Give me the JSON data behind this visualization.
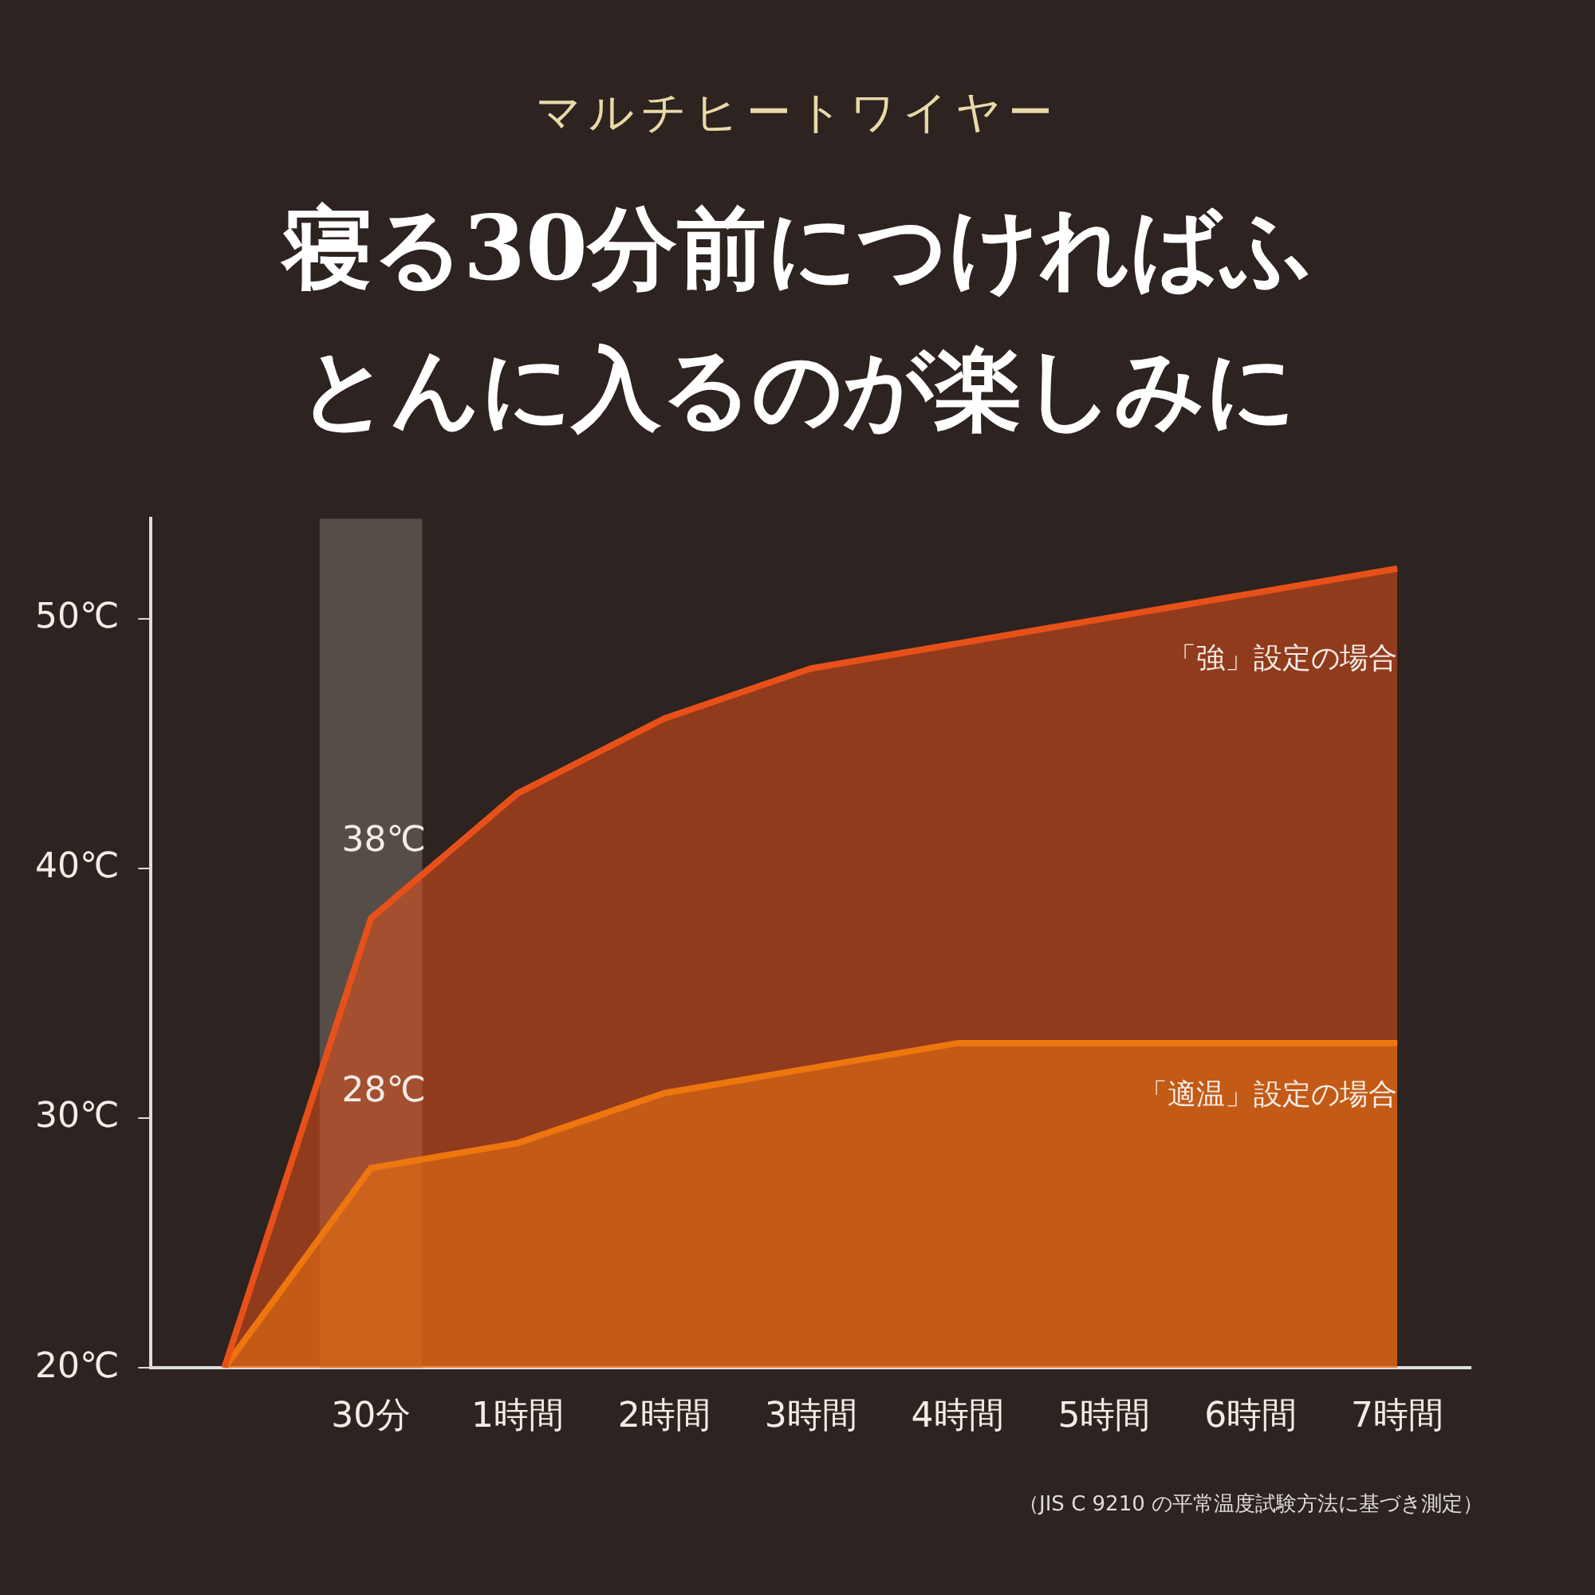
{
  "chart_data": {
    "type": "area",
    "subtitle": "マルチヒートワイヤー",
    "title": "寝る30分前につければふとんに入るのが楽しみに",
    "categories": [
      null,
      "30分",
      "1時間",
      "2時間",
      "3時間",
      "4時間",
      "5時間",
      "6時間",
      "7時間"
    ],
    "series": [
      {
        "name": "「強」設定の場合",
        "color": "#e8501a",
        "values": [
          20,
          38,
          43,
          46,
          48,
          49,
          50,
          51,
          52
        ]
      },
      {
        "name": "「適温」設定の場合",
        "color": "#f5a000",
        "values": [
          20,
          28,
          29,
          31,
          32,
          33,
          33,
          33,
          33
        ]
      }
    ],
    "ylim": [
      20,
      54
    ],
    "yticks": [
      {
        "value": 20,
        "label": "20℃"
      },
      {
        "value": 30,
        "label": "30℃"
      },
      {
        "value": 40,
        "label": "40℃"
      },
      {
        "value": 50,
        "label": "50℃"
      }
    ],
    "grid": false,
    "legend": false,
    "bands": [
      {
        "axis": "x",
        "from": "30分",
        "to": "30分",
        "color": "#8a807c"
      }
    ],
    "annotations": [
      {
        "text": "38℃",
        "x": "30分",
        "y": 38
      },
      {
        "text": "28℃",
        "x": "30分",
        "y": 28
      },
      "（JIS C 9210 の平常温度試験方法に基づき測定）"
    ]
  }
}
